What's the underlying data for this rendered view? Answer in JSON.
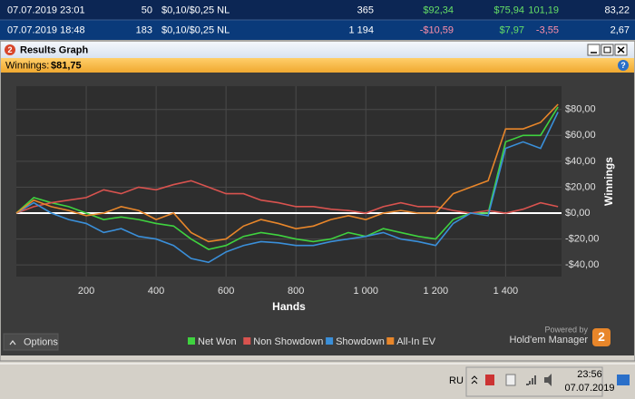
{
  "table": {
    "rows": [
      [
        "07.07.2019 23:01",
        "50",
        "$0,10/$0,25 NL",
        "365",
        "$92,34",
        "$75,94",
        "101,19",
        "83,22"
      ],
      [
        "07.07.2019 18:48",
        "183",
        "$0,10/$0,25 NL",
        "1 194",
        "-$10,59",
        "$7,97",
        "-3,55",
        "2,67"
      ]
    ]
  },
  "window": {
    "title": "Results Graph",
    "icon": "2"
  },
  "winnings": {
    "label": "Winnings:",
    "value": "$81,75",
    "help": "?"
  },
  "chart_data": {
    "type": "line",
    "x_label": "Hands",
    "y_label": "Winnings",
    "x": [
      0,
      50,
      100,
      150,
      200,
      250,
      300,
      350,
      400,
      450,
      500,
      550,
      600,
      650,
      700,
      750,
      800,
      850,
      900,
      950,
      1000,
      1050,
      1100,
      1150,
      1200,
      1250,
      1300,
      1350,
      1400,
      1450,
      1500,
      1550
    ],
    "series": [
      {
        "name": "Net Won",
        "color": "#3fd23f",
        "values": [
          0,
          12,
          8,
          5,
          0,
          -5,
          -3,
          -5,
          -8,
          -10,
          -20,
          -28,
          -25,
          -18,
          -15,
          -17,
          -20,
          -22,
          -20,
          -15,
          -18,
          -12,
          -15,
          -18,
          -20,
          -5,
          0,
          0,
          55,
          60,
          60,
          82
        ]
      },
      {
        "name": "Non Showdown",
        "color": "#d9534f",
        "values": [
          0,
          5,
          8,
          10,
          12,
          18,
          15,
          20,
          18,
          22,
          25,
          20,
          15,
          15,
          10,
          8,
          5,
          5,
          3,
          2,
          0,
          5,
          8,
          5,
          5,
          2,
          0,
          2,
          0,
          3,
          8,
          5
        ]
      },
      {
        "name": "Showdown",
        "color": "#3a8fd9",
        "values": [
          0,
          8,
          0,
          -5,
          -8,
          -15,
          -12,
          -18,
          -20,
          -25,
          -35,
          -38,
          -30,
          -25,
          -22,
          -23,
          -25,
          -25,
          -22,
          -20,
          -18,
          -15,
          -20,
          -22,
          -25,
          -8,
          0,
          -2,
          50,
          55,
          50,
          78
        ]
      },
      {
        "name": "All-In EV",
        "color": "#e8862a",
        "values": [
          0,
          10,
          5,
          2,
          -2,
          0,
          5,
          2,
          -5,
          0,
          -15,
          -22,
          -20,
          -10,
          -5,
          -8,
          -12,
          -10,
          -5,
          -2,
          -5,
          0,
          2,
          0,
          0,
          15,
          20,
          25,
          65,
          65,
          70,
          84
        ]
      }
    ],
    "xlim": [
      0,
      1560
    ],
    "xticks": [
      200,
      400,
      600,
      800,
      {
        "value": 1000,
        "label": "1 000"
      },
      {
        "value": 1200,
        "label": "1 200"
      },
      {
        "value": 1400,
        "label": "1 400"
      }
    ],
    "ylim": [
      -49,
      98
    ],
    "yticks": [
      {
        "value": -40,
        "label": "-$40,00"
      },
      {
        "value": -20,
        "label": "-$20,00"
      },
      {
        "value": 0,
        "label": "$0,00"
      },
      {
        "value": 20,
        "label": "$20,00"
      },
      {
        "value": 40,
        "label": "$40,00"
      },
      {
        "value": 60,
        "label": "$60,00"
      },
      {
        "value": 80,
        "label": "$80,00"
      }
    ],
    "grid": true,
    "zero_line_color": "#ffffff"
  },
  "options": "Options",
  "branding": {
    "powered_by": "Powered by",
    "product": "Hold'em Manager",
    "logo": "2"
  },
  "taskbar": {
    "language": "RU",
    "time": "23:56",
    "date": "07.07.2019"
  }
}
